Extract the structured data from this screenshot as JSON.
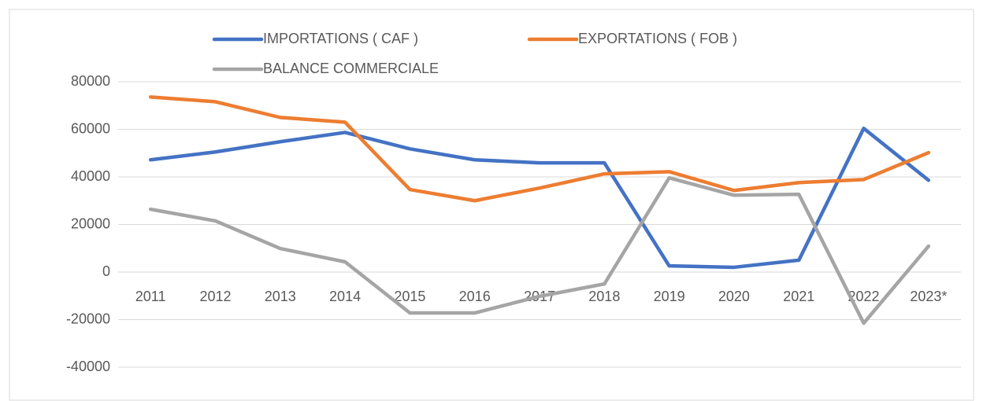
{
  "chart_data": {
    "type": "line",
    "categories": [
      "2011",
      "2012",
      "2013",
      "2014",
      "2015",
      "2016",
      "2017",
      "2018",
      "2019",
      "2020",
      "2021",
      "2022",
      "2023*"
    ],
    "series": [
      {
        "name": "IMPORTATIONS ( CAF )",
        "color": "#4472c4",
        "values": [
          47200,
          50500,
          54800,
          58700,
          51800,
          47200,
          45900,
          45900,
          2600,
          2000,
          5000,
          60400,
          38600
        ]
      },
      {
        "name": "EXPORTATIONS ( FOB )",
        "color": "#ed7d31",
        "values": [
          73600,
          71600,
          65000,
          63000,
          34700,
          30000,
          35300,
          41300,
          42200,
          34300,
          37600,
          38900,
          50200
        ]
      },
      {
        "name": "BALANCE COMMERCIALE",
        "color": "#a5a5a5",
        "values": [
          26400,
          21500,
          9900,
          4300,
          -17200,
          -17200,
          -10200,
          -5000,
          39600,
          32300,
          32700,
          -21500,
          10900
        ]
      }
    ],
    "ylim": [
      -40000,
      80000
    ],
    "yticks": [
      -40000,
      -20000,
      0,
      20000,
      40000,
      60000,
      80000
    ],
    "grid": true
  }
}
